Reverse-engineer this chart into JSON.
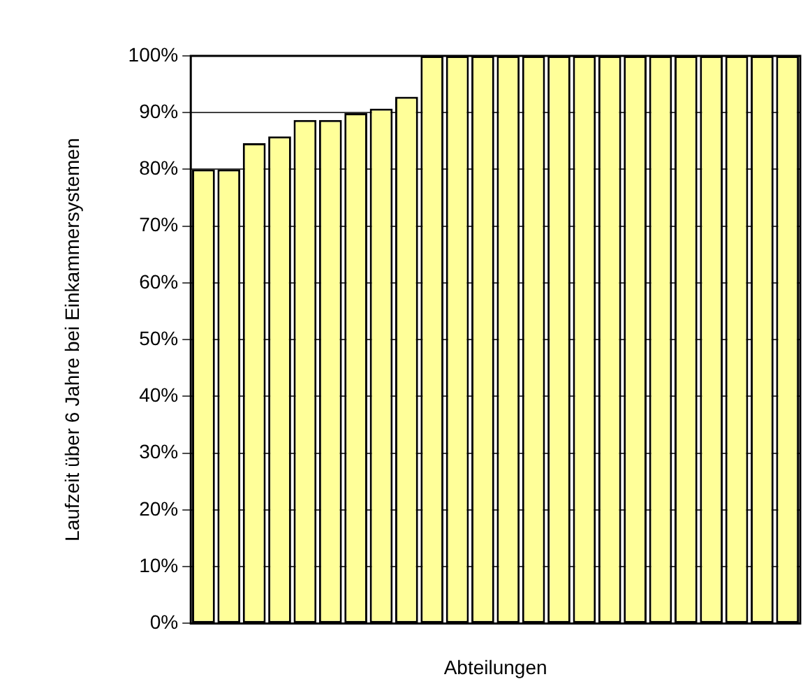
{
  "chart_data": {
    "type": "bar",
    "ylabel": "Laufzeit über 6 Jahre bei Einkammersystemen",
    "xlabel": "Abteilungen",
    "categories": [
      null,
      null,
      null,
      null,
      null,
      null,
      null,
      null,
      null,
      null,
      null,
      null,
      null,
      null,
      null,
      null,
      null,
      null,
      null,
      null,
      null,
      null,
      null,
      null
    ],
    "values": [
      80,
      80,
      84.6,
      85.8,
      88.7,
      88.7,
      89.9,
      90.7,
      92.8,
      100,
      100,
      100,
      100,
      100,
      100,
      100,
      100,
      100,
      100,
      100,
      100,
      100,
      100,
      100
    ],
    "color": "#ffff99",
    "ylim": [
      0,
      100
    ],
    "yticks": [
      {
        "value": 0,
        "label": "0%"
      },
      {
        "value": 10,
        "label": "10%"
      },
      {
        "value": 20,
        "label": "20%"
      },
      {
        "value": 30,
        "label": "30%"
      },
      {
        "value": 40,
        "label": "40%"
      },
      {
        "value": 50,
        "label": "50%"
      },
      {
        "value": 60,
        "label": "60%"
      },
      {
        "value": 70,
        "label": "70%"
      },
      {
        "value": 80,
        "label": "80%"
      },
      {
        "value": 90,
        "label": "90%"
      },
      {
        "value": 100,
        "label": "100%"
      }
    ],
    "grid": "y",
    "tick_labels": "y",
    "legend": false
  }
}
